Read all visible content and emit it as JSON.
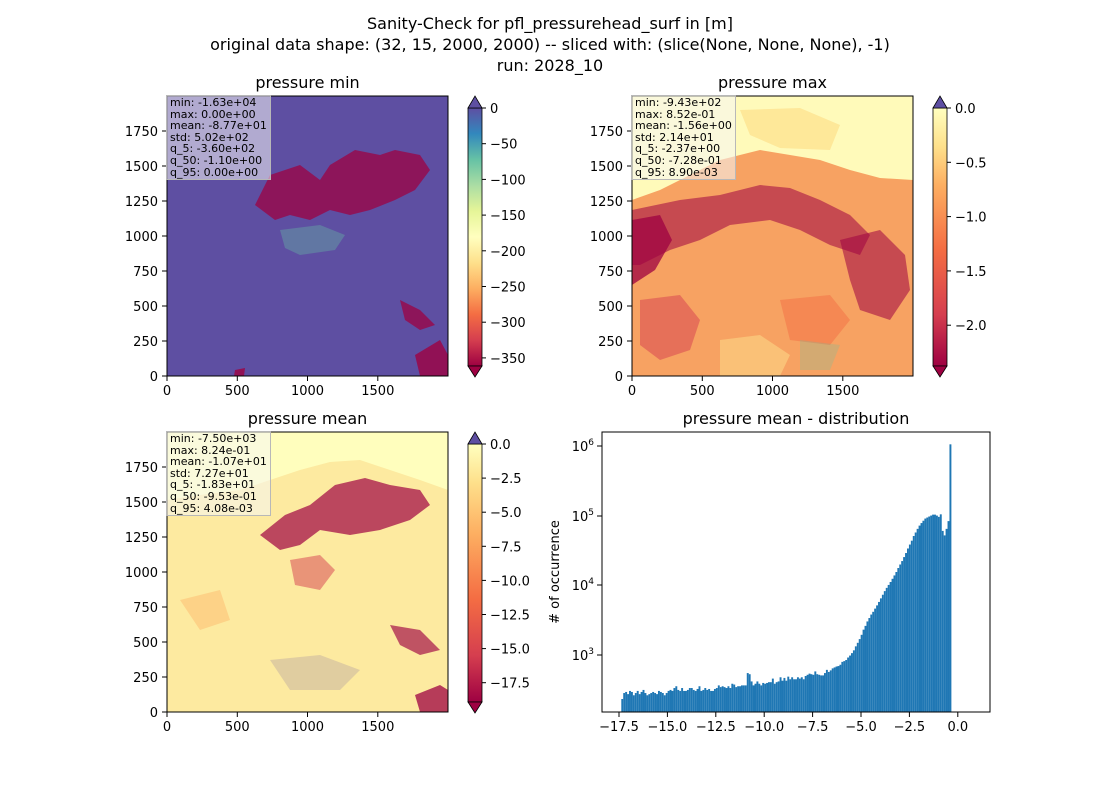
{
  "suptitle": {
    "line1": "Sanity-Check for pfl_pressurehead_surf in [m]",
    "line2": "original data shape: (32, 15, 2000, 2000) -- sliced with: (slice(None, None, None), -1)",
    "line3": "run: 2028_10"
  },
  "panels": {
    "min": {
      "title": "pressure min",
      "stats": [
        "min: -1.63e+04",
        "max: 0.00e+00",
        "mean: -8.77e+01",
        "std: 5.02e+02",
        "q_5: -3.60e+02",
        "q_50: -1.10e+00",
        "q_95: 0.00e+00"
      ],
      "x_ticks": [
        "0",
        "500",
        "1000",
        "1500"
      ],
      "y_ticks": [
        "0",
        "250",
        "500",
        "750",
        "1000",
        "1250",
        "1500",
        "1750"
      ],
      "colorbar_ticks": [
        "0",
        "−50",
        "−100",
        "−150",
        "−200",
        "−250",
        "−300",
        "−350"
      ],
      "colorbar_range": [
        -370,
        0
      ],
      "colormap": "Spectral"
    },
    "max": {
      "title": "pressure max",
      "stats": [
        "min: -9.43e+02",
        "max: 8.52e-01",
        "mean: -1.56e+00",
        "std: 2.14e+01",
        "q_5: -2.37e+00",
        "q_50: -7.28e-01",
        "q_95: 8.90e-03"
      ],
      "x_ticks": [
        "0",
        "500",
        "1000",
        "1500"
      ],
      "y_ticks": [
        "0",
        "250",
        "500",
        "750",
        "1000",
        "1250",
        "1500",
        "1750"
      ],
      "colorbar_ticks": [
        "0.0",
        "−0.5",
        "−1.0",
        "−1.5",
        "−2.0"
      ],
      "colorbar_range": [
        -2.45,
        0
      ],
      "colormap": "Spectral"
    },
    "mean": {
      "title": "pressure mean",
      "stats": [
        "min: -7.50e+03",
        "max: 8.24e-01",
        "mean: -1.07e+01",
        "std: 7.27e+01",
        "q_5: -1.83e+01",
        "q_50: -9.53e-01",
        "q_95: 4.08e-03"
      ],
      "x_ticks": [
        "0",
        "500",
        "1000",
        "1500"
      ],
      "y_ticks": [
        "0",
        "250",
        "500",
        "750",
        "1000",
        "1250",
        "1500",
        "1750"
      ],
      "colorbar_ticks": [
        "0.0",
        "−2.5",
        "−5.0",
        "−7.5",
        "−10.0",
        "−12.5",
        "−15.0",
        "−17.5"
      ],
      "colorbar_range": [
        -18.9,
        0
      ],
      "colormap": "Spectral"
    }
  },
  "chart_data": [
    {
      "type": "heatmap",
      "title": "pressure min",
      "xlim": [
        0,
        2000
      ],
      "ylim": [
        0,
        2000
      ],
      "colorbar_range": [
        -370,
        0
      ],
      "colormap": "Spectral"
    },
    {
      "type": "heatmap",
      "title": "pressure max",
      "xlim": [
        0,
        2000
      ],
      "ylim": [
        0,
        2000
      ],
      "colorbar_range": [
        -2.45,
        0
      ],
      "colormap": "Spectral"
    },
    {
      "type": "heatmap",
      "title": "pressure mean",
      "xlim": [
        0,
        2000
      ],
      "ylim": [
        0,
        2000
      ],
      "colorbar_range": [
        -18.9,
        0
      ],
      "colormap": "Spectral"
    },
    {
      "type": "bar",
      "title": "pressure mean - distribution",
      "xlabel": "",
      "ylabel": "# of occurrence",
      "yscale": "log",
      "x_ticks": [
        "−17.5",
        "−15.0",
        "−12.5",
        "−10.0",
        "−7.5",
        "−5.0",
        "−2.5",
        "0.0"
      ],
      "y_ticks": [
        "10^3",
        "10^4",
        "10^5",
        "10^6"
      ],
      "xlim": [
        -19.3,
        0.8
      ],
      "ylim": [
        150,
        1500000
      ],
      "bin_width": 0.1,
      "bin_start": -18.3,
      "values": [
        230,
        280,
        290,
        270,
        300,
        290,
        260,
        280,
        300,
        270,
        290,
        310,
        280,
        260,
        270,
        280,
        290,
        280,
        270,
        300,
        290,
        280,
        260,
        280,
        300,
        310,
        300,
        330,
        350,
        310,
        300,
        330,
        300,
        300,
        310,
        330,
        330,
        310,
        300,
        320,
        350,
        300,
        310,
        330,
        310,
        320,
        300,
        300,
        320,
        330,
        360,
        340,
        350,
        340,
        330,
        350,
        330,
        380,
        370,
        340,
        350,
        350,
        360,
        360,
        360,
        540,
        520,
        410,
        360,
        380,
        410,
        380,
        360,
        390,
        380,
        390,
        400,
        400,
        450,
        380,
        400,
        410,
        470,
        420,
        460,
        420,
        480,
        440,
        470,
        440,
        440,
        470,
        450,
        470,
        440,
        490,
        510,
        530,
        520,
        510,
        570,
        520,
        510,
        500,
        500,
        540,
        600,
        560,
        590,
        630,
        650,
        670,
        680,
        710,
        780,
        800,
        830,
        900,
        960,
        1040,
        1140,
        1300,
        1460,
        1650,
        1900,
        2250,
        2550,
        2950,
        3300,
        3700,
        4050,
        4500,
        5000,
        5600,
        6300,
        7100,
        8000,
        8900,
        9800,
        10800,
        12000,
        13400,
        15000,
        17100,
        19200,
        21500,
        24500,
        28000,
        32500,
        37000,
        42000,
        49000,
        55000,
        62000,
        69000,
        75000,
        81000,
        87000,
        90000,
        93000,
        96000,
        99000,
        99000,
        96000,
        92000,
        100000,
        58000,
        50000,
        62000,
        80000,
        1000000
      ]
    }
  ]
}
